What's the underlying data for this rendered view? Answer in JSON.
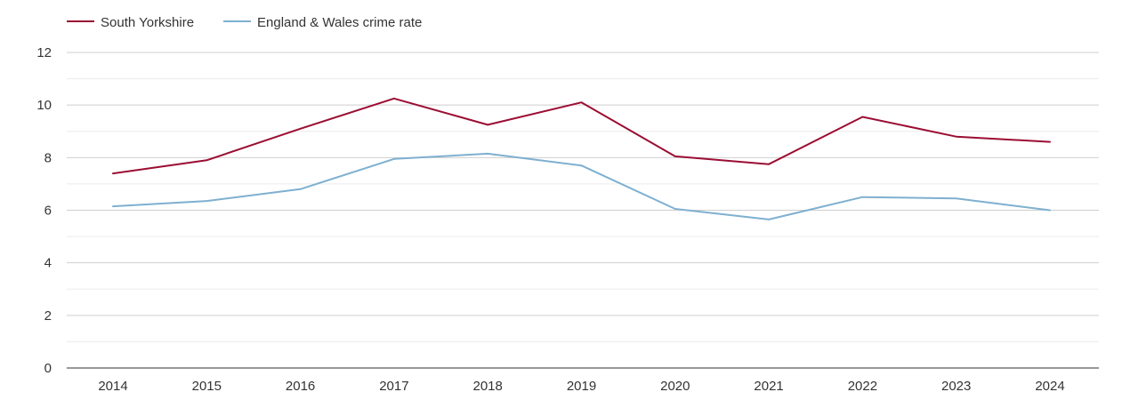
{
  "chart_data": {
    "type": "line",
    "title": "",
    "xlabel": "",
    "ylabel": "",
    "x": [
      "2014",
      "2015",
      "2016",
      "2017",
      "2018",
      "2019",
      "2020",
      "2021",
      "2022",
      "2023",
      "2024"
    ],
    "ylim": [
      0,
      12
    ],
    "yticks": [
      "0",
      "2",
      "4",
      "6",
      "8",
      "10",
      "12"
    ],
    "grid": true,
    "legend_position": "top-left",
    "series": [
      {
        "name": "South Yorkshire",
        "color": "#9b0d33",
        "values": [
          7.4,
          7.9,
          9.1,
          10.25,
          9.25,
          10.1,
          8.05,
          7.75,
          9.55,
          8.8,
          8.6
        ]
      },
      {
        "name": "England & Wales crime rate",
        "color": "#7eb0d0",
        "values": [
          6.15,
          6.35,
          6.8,
          7.95,
          8.15,
          7.7,
          6.05,
          5.65,
          6.5,
          6.45,
          6.0
        ]
      }
    ]
  }
}
